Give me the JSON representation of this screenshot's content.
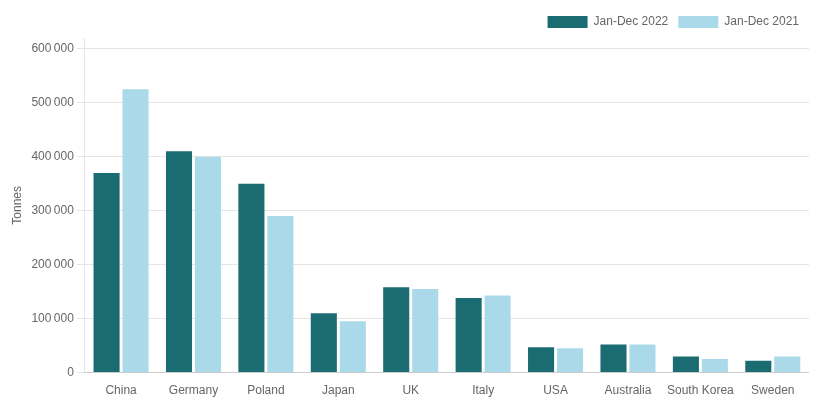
{
  "chart_data": {
    "type": "bar",
    "categories": [
      "China",
      "Germany",
      "Poland",
      "Japan",
      "UK",
      "Italy",
      "USA",
      "Australia",
      "South Korea",
      "Sweden"
    ],
    "series": [
      {
        "name": "Jan-Dec 2022",
        "color": "#1b6b72",
        "values": [
          370000,
          410000,
          350000,
          110000,
          158000,
          138000,
          47000,
          52000,
          30000,
          22000
        ]
      },
      {
        "name": "Jan-Dec 2021",
        "color": "#aadaea",
        "values": [
          525000,
          400000,
          290000,
          95000,
          155000,
          143000,
          45000,
          52000,
          25000,
          30000
        ]
      }
    ],
    "ylabel": "Tonnes",
    "ylim": [
      0,
      620000
    ],
    "yticks": [
      0,
      {
        "value": 100000,
        "label": "100 000"
      },
      {
        "value": 200000,
        "label": "200 000"
      },
      {
        "value": 300000,
        "label": "300 000"
      },
      {
        "value": 400000,
        "label": "400 000"
      },
      {
        "value": 500000,
        "label": "500 000"
      },
      {
        "value": 600000,
        "label": "600 000"
      }
    ],
    "grid": true,
    "legend": "upper right"
  }
}
